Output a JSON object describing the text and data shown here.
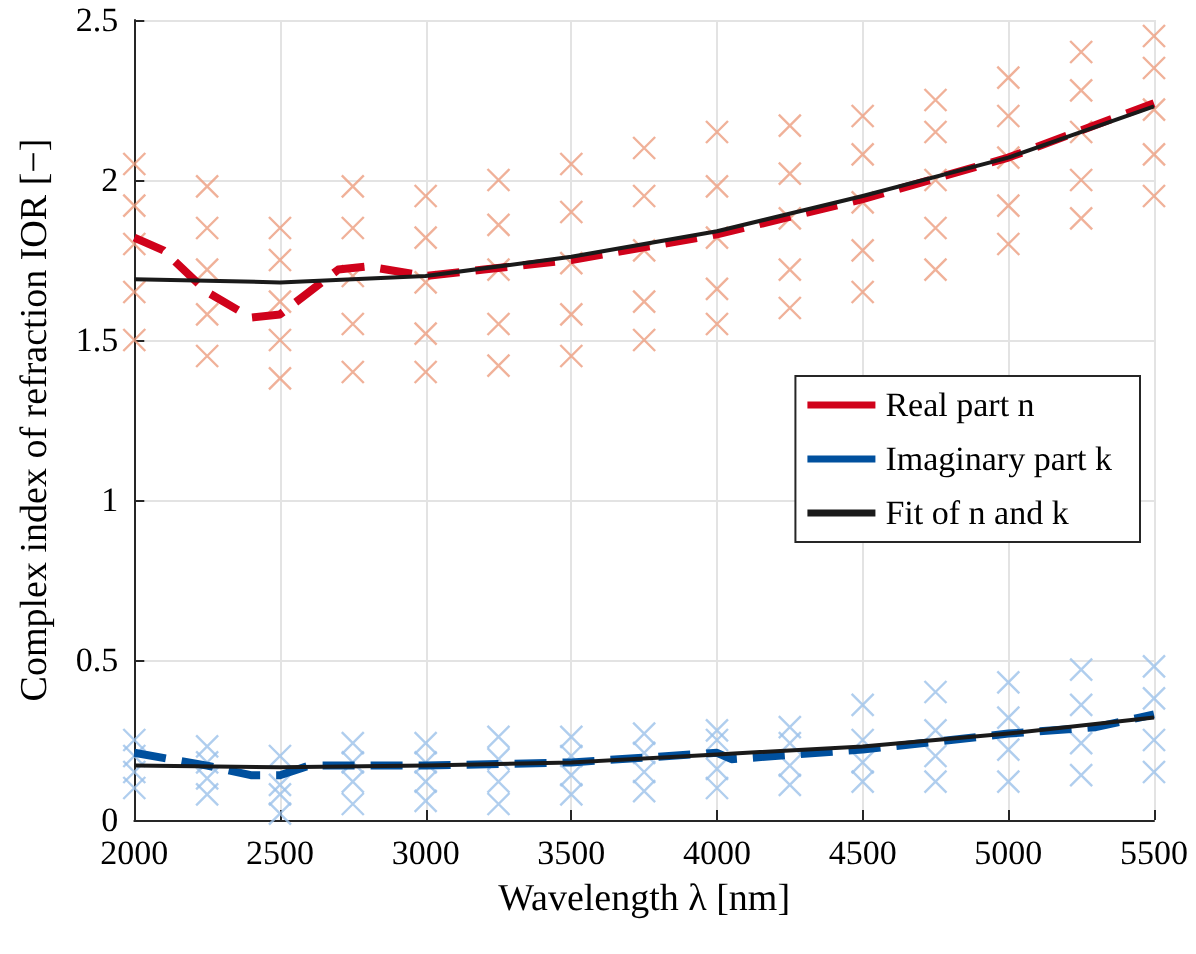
{
  "chart_data": {
    "type": "scatter",
    "xlabel": "Wavelength λ [nm]",
    "ylabel": "Complex index of refraction IOR [−]",
    "xlim": [
      2000,
      5500
    ],
    "xticks": [
      2000,
      2500,
      3000,
      3500,
      4000,
      4500,
      5000,
      5500
    ],
    "ylim": [
      0,
      2.5
    ],
    "yticks": [
      0,
      0.5,
      1,
      1.5,
      2,
      2.5
    ],
    "grid": true,
    "legend": "right",
    "series": [
      {
        "type": "scatter",
        "marker": "cross",
        "color": "#ec9e7f",
        "x": [
          2000,
          2000,
          2000,
          2000,
          2000,
          2250,
          2250,
          2250,
          2250,
          2250,
          2500,
          2500,
          2500,
          2500,
          2500,
          2750,
          2750,
          2750,
          2750,
          2750,
          3000,
          3000,
          3000,
          3000,
          3000,
          3250,
          3250,
          3250,
          3250,
          3250,
          3500,
          3500,
          3500,
          3500,
          3500,
          3750,
          3750,
          3750,
          3750,
          3750,
          4000,
          4000,
          4000,
          4000,
          4000,
          4250,
          4250,
          4250,
          4250,
          4250,
          4500,
          4500,
          4500,
          4500,
          4500,
          4750,
          4750,
          4750,
          4750,
          4750,
          5000,
          5000,
          5000,
          5000,
          5000,
          5250,
          5250,
          5250,
          5250,
          5250,
          5500,
          5500,
          5500,
          5500,
          5500
        ],
        "values": [
          1.5,
          1.65,
          1.8,
          1.92,
          2.05,
          1.45,
          1.58,
          1.72,
          1.85,
          1.98,
          1.38,
          1.5,
          1.62,
          1.75,
          1.85,
          1.4,
          1.55,
          1.7,
          1.85,
          1.98,
          1.4,
          1.52,
          1.68,
          1.82,
          1.95,
          1.42,
          1.55,
          1.72,
          1.86,
          2.0,
          1.45,
          1.58,
          1.74,
          1.9,
          2.05,
          1.5,
          1.62,
          1.78,
          1.95,
          2.1,
          1.55,
          1.66,
          1.82,
          1.98,
          2.15,
          1.6,
          1.72,
          1.88,
          2.02,
          2.17,
          1.65,
          1.78,
          1.93,
          2.08,
          2.2,
          1.72,
          1.85,
          2.0,
          2.15,
          2.25,
          1.8,
          1.92,
          2.07,
          2.2,
          2.32,
          1.88,
          2.0,
          2.15,
          2.28,
          2.4,
          1.95,
          2.08,
          2.22,
          2.35,
          2.45
        ]
      },
      {
        "type": "scatter",
        "marker": "cross",
        "color": "#9cc2ea",
        "x": [
          2000,
          2000,
          2000,
          2000,
          2250,
          2250,
          2250,
          2250,
          2500,
          2500,
          2500,
          2500,
          2750,
          2750,
          2750,
          2750,
          3000,
          3000,
          3000,
          3000,
          3250,
          3250,
          3250,
          3250,
          3500,
          3500,
          3500,
          3500,
          3750,
          3750,
          3750,
          3750,
          4000,
          4000,
          4000,
          4000,
          4250,
          4250,
          4250,
          4250,
          4500,
          4500,
          4500,
          4500,
          4750,
          4750,
          4750,
          4750,
          5000,
          5000,
          5000,
          5000,
          5250,
          5250,
          5250,
          5250,
          5500,
          5500,
          5500,
          5500
        ],
        "values": [
          0.1,
          0.15,
          0.2,
          0.25,
          0.08,
          0.13,
          0.18,
          0.23,
          0.02,
          0.08,
          0.11,
          0.2,
          0.05,
          0.12,
          0.18,
          0.24,
          0.06,
          0.12,
          0.18,
          0.24,
          0.05,
          0.12,
          0.19,
          0.26,
          0.08,
          0.14,
          0.2,
          0.26,
          0.09,
          0.15,
          0.21,
          0.27,
          0.1,
          0.16,
          0.25,
          0.28,
          0.11,
          0.17,
          0.24,
          0.29,
          0.12,
          0.18,
          0.25,
          0.36,
          0.12,
          0.2,
          0.28,
          0.4,
          0.12,
          0.22,
          0.32,
          0.43,
          0.14,
          0.24,
          0.36,
          0.47,
          0.15,
          0.25,
          0.38,
          0.48
        ]
      },
      {
        "type": "line",
        "name": "Real part n",
        "color": "#d0021b",
        "line_style": "dashed",
        "marker": "none",
        "x": [
          2000,
          2100,
          2250,
          2400,
          2500,
          2600,
          2700,
          2800,
          3000,
          3200,
          3500,
          4000,
          4500,
          5000,
          5500
        ],
        "values": [
          1.82,
          1.78,
          1.65,
          1.57,
          1.58,
          1.65,
          1.72,
          1.73,
          1.7,
          1.72,
          1.75,
          1.83,
          1.94,
          2.07,
          2.24
        ]
      },
      {
        "type": "line",
        "name": "Imaginary part k",
        "color": "#00509e",
        "line_style": "dashed",
        "marker": "none",
        "x": [
          2000,
          2250,
          2400,
          2500,
          2600,
          3000,
          3500,
          4000,
          4050,
          4500,
          5000,
          5300,
          5450,
          5500
        ],
        "values": [
          0.21,
          0.17,
          0.14,
          0.14,
          0.17,
          0.17,
          0.18,
          0.21,
          0.19,
          0.22,
          0.27,
          0.29,
          0.32,
          0.33
        ]
      },
      {
        "type": "line",
        "name": "Fit of n and k",
        "color": "#1a1a1a",
        "line_style": "solid",
        "marker": "none",
        "x": [
          2000,
          2500,
          3000,
          3500,
          4000,
          4500,
          5000,
          5500
        ],
        "values": [
          1.69,
          1.68,
          1.7,
          1.76,
          1.84,
          1.95,
          2.07,
          2.23
        ]
      },
      {
        "type": "line",
        "color": "#1a1a1a",
        "line_style": "solid",
        "marker": "none",
        "x": [
          2000,
          2500,
          3000,
          3500,
          4000,
          4500,
          5000,
          5500
        ],
        "values": [
          0.17,
          0.165,
          0.17,
          0.18,
          0.205,
          0.23,
          0.27,
          0.32
        ]
      }
    ]
  }
}
